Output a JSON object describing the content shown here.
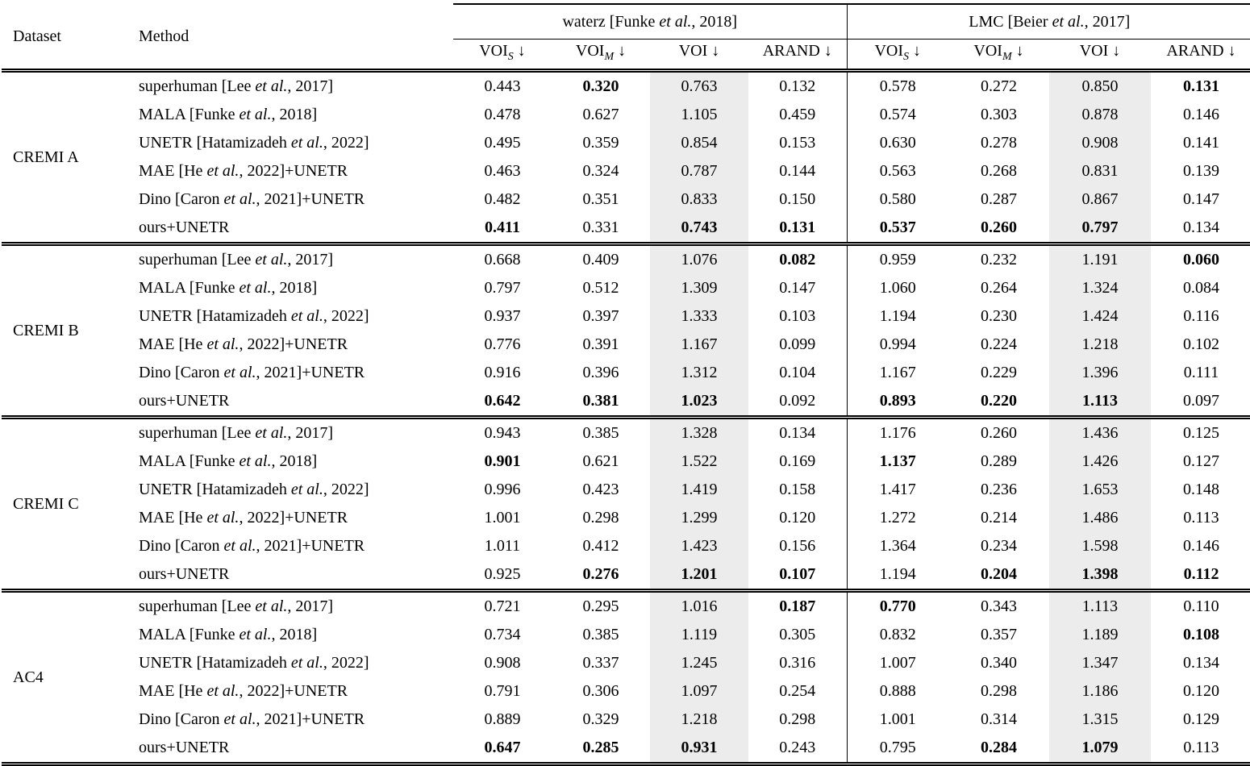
{
  "header": {
    "dataset_label": "Dataset",
    "method_label": "Method",
    "groups": [
      {
        "pre": "waterz [Funke ",
        "etal": "et al.",
        "post": ", 2018]"
      },
      {
        "pre": "LMC [Beier ",
        "etal": "et al.",
        "post": ", 2017]"
      }
    ],
    "group_keys": [
      "waterz",
      "lmc"
    ],
    "metric_keys": [
      "voi-s",
      "voi-m",
      "voi",
      "arand"
    ],
    "metrics": [
      {
        "base": "VOI",
        "sub": "S",
        "arrow": "↓"
      },
      {
        "base": "VOI",
        "sub": "M",
        "arrow": "↓"
      },
      {
        "base": "VOI",
        "sub": "",
        "arrow": "↓"
      },
      {
        "base": "ARAND",
        "sub": "",
        "arrow": "↓"
      }
    ]
  },
  "colors": {
    "voi_column_highlight": "#ececec",
    "text": "#000000"
  },
  "methods": [
    {
      "pre": "superhuman [Lee ",
      "etal": "et al.",
      "post": ", 2017]"
    },
    {
      "pre": "MALA [Funke ",
      "etal": "et al.",
      "post": ", 2018]"
    },
    {
      "pre": "UNETR [Hatamizadeh ",
      "etal": "et al.",
      "post": ", 2022]"
    },
    {
      "pre": "MAE [He ",
      "etal": "et al.",
      "post": ", 2022]+UNETR"
    },
    {
      "pre": "Dino [Caron ",
      "etal": "et al.",
      "post": ", 2021]+UNETR"
    },
    {
      "pre": "ours+UNETR",
      "etal": "",
      "post": ""
    }
  ],
  "blocks": [
    {
      "dataset": "CREMI A",
      "rows": [
        {
          "waterz": [
            [
              "0.443",
              0
            ],
            [
              "0.320",
              1
            ],
            [
              "0.763",
              0
            ],
            [
              "0.132",
              0
            ]
          ],
          "lmc": [
            [
              "0.578",
              0
            ],
            [
              "0.272",
              0
            ],
            [
              "0.850",
              0
            ],
            [
              "0.131",
              1
            ]
          ]
        },
        {
          "waterz": [
            [
              "0.478",
              0
            ],
            [
              "0.627",
              0
            ],
            [
              "1.105",
              0
            ],
            [
              "0.459",
              0
            ]
          ],
          "lmc": [
            [
              "0.574",
              0
            ],
            [
              "0.303",
              0
            ],
            [
              "0.878",
              0
            ],
            [
              "0.146",
              0
            ]
          ]
        },
        {
          "waterz": [
            [
              "0.495",
              0
            ],
            [
              "0.359",
              0
            ],
            [
              "0.854",
              0
            ],
            [
              "0.153",
              0
            ]
          ],
          "lmc": [
            [
              "0.630",
              0
            ],
            [
              "0.278",
              0
            ],
            [
              "0.908",
              0
            ],
            [
              "0.141",
              0
            ]
          ]
        },
        {
          "waterz": [
            [
              "0.463",
              0
            ],
            [
              "0.324",
              0
            ],
            [
              "0.787",
              0
            ],
            [
              "0.144",
              0
            ]
          ],
          "lmc": [
            [
              "0.563",
              0
            ],
            [
              "0.268",
              0
            ],
            [
              "0.831",
              0
            ],
            [
              "0.139",
              0
            ]
          ]
        },
        {
          "waterz": [
            [
              "0.482",
              0
            ],
            [
              "0.351",
              0
            ],
            [
              "0.833",
              0
            ],
            [
              "0.150",
              0
            ]
          ],
          "lmc": [
            [
              "0.580",
              0
            ],
            [
              "0.287",
              0
            ],
            [
              "0.867",
              0
            ],
            [
              "0.147",
              0
            ]
          ]
        },
        {
          "waterz": [
            [
              "0.411",
              1
            ],
            [
              "0.331",
              0
            ],
            [
              "0.743",
              1
            ],
            [
              "0.131",
              1
            ]
          ],
          "lmc": [
            [
              "0.537",
              1
            ],
            [
              "0.260",
              1
            ],
            [
              "0.797",
              1
            ],
            [
              "0.134",
              0
            ]
          ]
        }
      ]
    },
    {
      "dataset": "CREMI B",
      "rows": [
        {
          "waterz": [
            [
              "0.668",
              0
            ],
            [
              "0.409",
              0
            ],
            [
              "1.076",
              0
            ],
            [
              "0.082",
              1
            ]
          ],
          "lmc": [
            [
              "0.959",
              0
            ],
            [
              "0.232",
              0
            ],
            [
              "1.191",
              0
            ],
            [
              "0.060",
              1
            ]
          ]
        },
        {
          "waterz": [
            [
              "0.797",
              0
            ],
            [
              "0.512",
              0
            ],
            [
              "1.309",
              0
            ],
            [
              "0.147",
              0
            ]
          ],
          "lmc": [
            [
              "1.060",
              0
            ],
            [
              "0.264",
              0
            ],
            [
              "1.324",
              0
            ],
            [
              "0.084",
              0
            ]
          ]
        },
        {
          "waterz": [
            [
              "0.937",
              0
            ],
            [
              "0.397",
              0
            ],
            [
              "1.333",
              0
            ],
            [
              "0.103",
              0
            ]
          ],
          "lmc": [
            [
              "1.194",
              0
            ],
            [
              "0.230",
              0
            ],
            [
              "1.424",
              0
            ],
            [
              "0.116",
              0
            ]
          ]
        },
        {
          "waterz": [
            [
              "0.776",
              0
            ],
            [
              "0.391",
              0
            ],
            [
              "1.167",
              0
            ],
            [
              "0.099",
              0
            ]
          ],
          "lmc": [
            [
              "0.994",
              0
            ],
            [
              "0.224",
              0
            ],
            [
              "1.218",
              0
            ],
            [
              "0.102",
              0
            ]
          ]
        },
        {
          "waterz": [
            [
              "0.916",
              0
            ],
            [
              "0.396",
              0
            ],
            [
              "1.312",
              0
            ],
            [
              "0.104",
              0
            ]
          ],
          "lmc": [
            [
              "1.167",
              0
            ],
            [
              "0.229",
              0
            ],
            [
              "1.396",
              0
            ],
            [
              "0.111",
              0
            ]
          ]
        },
        {
          "waterz": [
            [
              "0.642",
              1
            ],
            [
              "0.381",
              1
            ],
            [
              "1.023",
              1
            ],
            [
              "0.092",
              0
            ]
          ],
          "lmc": [
            [
              "0.893",
              1
            ],
            [
              "0.220",
              1
            ],
            [
              "1.113",
              1
            ],
            [
              "0.097",
              0
            ]
          ]
        }
      ]
    },
    {
      "dataset": "CREMI C",
      "rows": [
        {
          "waterz": [
            [
              "0.943",
              0
            ],
            [
              "0.385",
              0
            ],
            [
              "1.328",
              0
            ],
            [
              "0.134",
              0
            ]
          ],
          "lmc": [
            [
              "1.176",
              0
            ],
            [
              "0.260",
              0
            ],
            [
              "1.436",
              0
            ],
            [
              "0.125",
              0
            ]
          ]
        },
        {
          "waterz": [
            [
              "0.901",
              1
            ],
            [
              "0.621",
              0
            ],
            [
              "1.522",
              0
            ],
            [
              "0.169",
              0
            ]
          ],
          "lmc": [
            [
              "1.137",
              1
            ],
            [
              "0.289",
              0
            ],
            [
              "1.426",
              0
            ],
            [
              "0.127",
              0
            ]
          ]
        },
        {
          "waterz": [
            [
              "0.996",
              0
            ],
            [
              "0.423",
              0
            ],
            [
              "1.419",
              0
            ],
            [
              "0.158",
              0
            ]
          ],
          "lmc": [
            [
              "1.417",
              0
            ],
            [
              "0.236",
              0
            ],
            [
              "1.653",
              0
            ],
            [
              "0.148",
              0
            ]
          ]
        },
        {
          "waterz": [
            [
              "1.001",
              0
            ],
            [
              "0.298",
              0
            ],
            [
              "1.299",
              0
            ],
            [
              "0.120",
              0
            ]
          ],
          "lmc": [
            [
              "1.272",
              0
            ],
            [
              "0.214",
              0
            ],
            [
              "1.486",
              0
            ],
            [
              "0.113",
              0
            ]
          ]
        },
        {
          "waterz": [
            [
              "1.011",
              0
            ],
            [
              "0.412",
              0
            ],
            [
              "1.423",
              0
            ],
            [
              "0.156",
              0
            ]
          ],
          "lmc": [
            [
              "1.364",
              0
            ],
            [
              "0.234",
              0
            ],
            [
              "1.598",
              0
            ],
            [
              "0.146",
              0
            ]
          ]
        },
        {
          "waterz": [
            [
              "0.925",
              0
            ],
            [
              "0.276",
              1
            ],
            [
              "1.201",
              1
            ],
            [
              "0.107",
              1
            ]
          ],
          "lmc": [
            [
              "1.194",
              0
            ],
            [
              "0.204",
              1
            ],
            [
              "1.398",
              1
            ],
            [
              "0.112",
              1
            ]
          ]
        }
      ]
    },
    {
      "dataset": "AC4",
      "rows": [
        {
          "waterz": [
            [
              "0.721",
              0
            ],
            [
              "0.295",
              0
            ],
            [
              "1.016",
              0
            ],
            [
              "0.187",
              1
            ]
          ],
          "lmc": [
            [
              "0.770",
              1
            ],
            [
              "0.343",
              0
            ],
            [
              "1.113",
              0
            ],
            [
              "0.110",
              0
            ]
          ]
        },
        {
          "waterz": [
            [
              "0.734",
              0
            ],
            [
              "0.385",
              0
            ],
            [
              "1.119",
              0
            ],
            [
              "0.305",
              0
            ]
          ],
          "lmc": [
            [
              "0.832",
              0
            ],
            [
              "0.357",
              0
            ],
            [
              "1.189",
              0
            ],
            [
              "0.108",
              1
            ]
          ]
        },
        {
          "waterz": [
            [
              "0.908",
              0
            ],
            [
              "0.337",
              0
            ],
            [
              "1.245",
              0
            ],
            [
              "0.316",
              0
            ]
          ],
          "lmc": [
            [
              "1.007",
              0
            ],
            [
              "0.340",
              0
            ],
            [
              "1.347",
              0
            ],
            [
              "0.134",
              0
            ]
          ]
        },
        {
          "waterz": [
            [
              "0.791",
              0
            ],
            [
              "0.306",
              0
            ],
            [
              "1.097",
              0
            ],
            [
              "0.254",
              0
            ]
          ],
          "lmc": [
            [
              "0.888",
              0
            ],
            [
              "0.298",
              0
            ],
            [
              "1.186",
              0
            ],
            [
              "0.120",
              0
            ]
          ]
        },
        {
          "waterz": [
            [
              "0.889",
              0
            ],
            [
              "0.329",
              0
            ],
            [
              "1.218",
              0
            ],
            [
              "0.298",
              0
            ]
          ],
          "lmc": [
            [
              "1.001",
              0
            ],
            [
              "0.314",
              0
            ],
            [
              "1.315",
              0
            ],
            [
              "0.129",
              0
            ]
          ]
        },
        {
          "waterz": [
            [
              "0.647",
              1
            ],
            [
              "0.285",
              1
            ],
            [
              "0.931",
              1
            ],
            [
              "0.243",
              0
            ]
          ],
          "lmc": [
            [
              "0.795",
              0
            ],
            [
              "0.284",
              1
            ],
            [
              "1.079",
              1
            ],
            [
              "0.113",
              0
            ]
          ]
        }
      ]
    }
  ]
}
